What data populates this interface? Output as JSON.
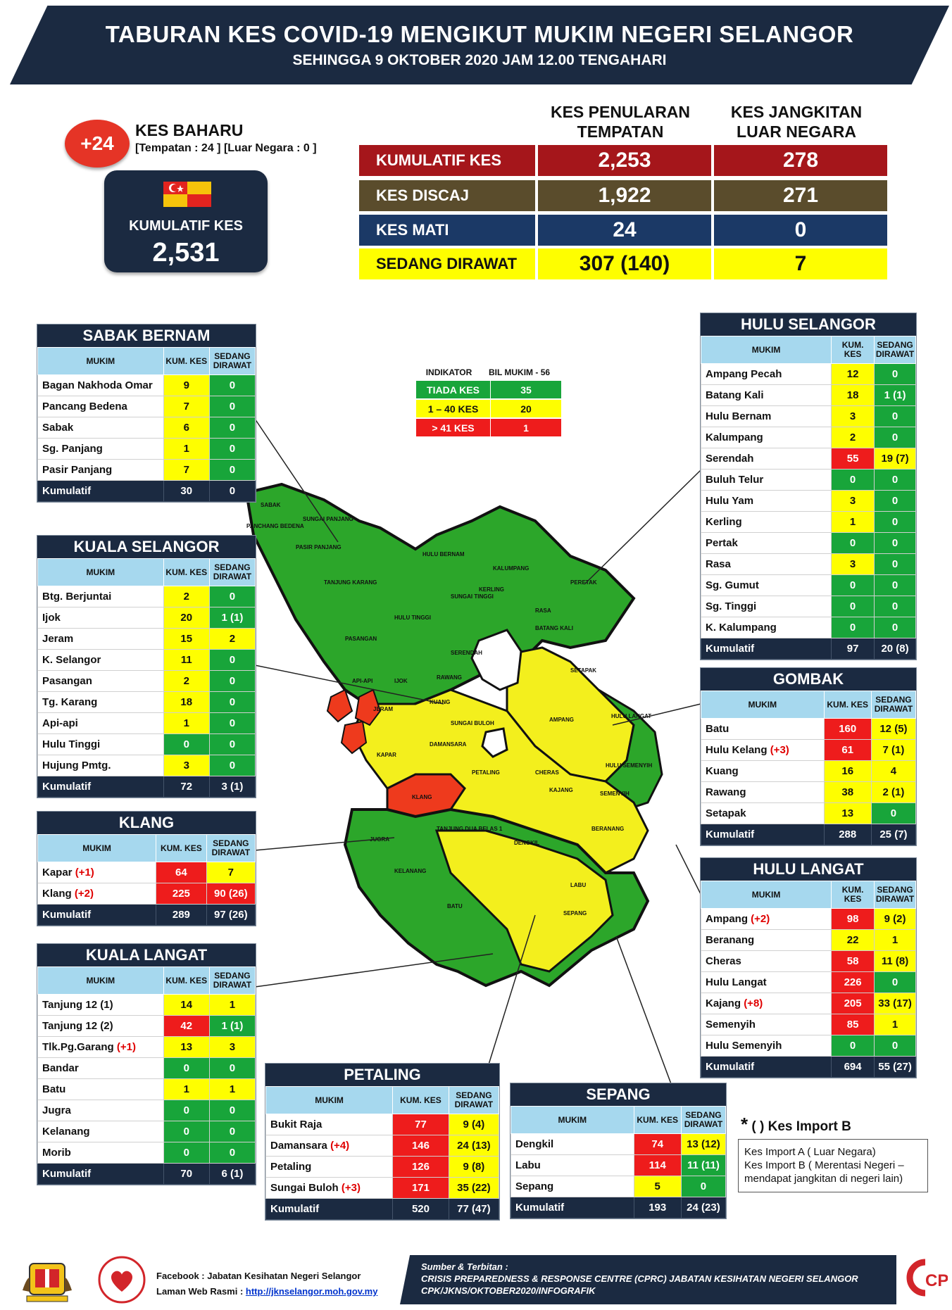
{
  "header": {
    "title": "TABURAN KES COVID-19 MENGIKUT MUKIM NEGERI SELANGOR",
    "subtitle": "SEHINGGA 9 OKTOBER 2020 JAM 12.00 TENGAHARI"
  },
  "new_cases": {
    "badge": "+24",
    "title": "KES BAHARU",
    "detail": "[Tempatan : 24 ] [Luar Negara : 0 ]"
  },
  "cumulative": {
    "label": "KUMULATIF KES",
    "value": "2,531"
  },
  "summary": {
    "col1": "KES PENULARAN TEMPATAN",
    "col2": "KES JANGKITAN LUAR NEGARA",
    "rows": [
      {
        "label": "KUMULATIF KES",
        "v1": "2,253",
        "v2": "278",
        "color": "#a5161b"
      },
      {
        "label": "KES DISCAJ",
        "v1": "1,922",
        "v2": "271",
        "color": "#5a4c2c"
      },
      {
        "label": "KES MATI",
        "v1": "24",
        "v2": "0",
        "color": "#1b3966"
      },
      {
        "label": "SEDANG DIRAWAT",
        "v1": "307 (140)",
        "v2": "7",
        "color": "#fefe00"
      }
    ]
  },
  "indicator": {
    "h1": "INDIKATOR",
    "h2": "BIL MUKIM - 56",
    "rows": [
      {
        "label": "TIADA KES",
        "value": "35",
        "color": "#18a53a"
      },
      {
        "label": "1 – 40 KES",
        "value": "20",
        "color": "#fefe00"
      },
      {
        "label": "> 41 KES",
        "value": "1",
        "color": "#ee1c1c"
      }
    ]
  },
  "table_headers": {
    "mukim": "MUKIM",
    "kum": "KUM. KES",
    "sedang": "SEDANG DIRAWAT"
  },
  "districts": {
    "sabak_bernam": {
      "title": "SABAK BERNAM",
      "rows": [
        {
          "mukim": "Bagan Nakhoda Omar",
          "inc": "",
          "kum": "9",
          "kc": "y",
          "sed": "0",
          "sc": "g"
        },
        {
          "mukim": "Pancang Bedena",
          "inc": "",
          "kum": "7",
          "kc": "y",
          "sed": "0",
          "sc": "g"
        },
        {
          "mukim": "Sabak",
          "inc": "",
          "kum": "6",
          "kc": "y",
          "sed": "0",
          "sc": "g"
        },
        {
          "mukim": "Sg. Panjang",
          "inc": "",
          "kum": "1",
          "kc": "y",
          "sed": "0",
          "sc": "g"
        },
        {
          "mukim": "Pasir Panjang",
          "inc": "",
          "kum": "7",
          "kc": "y",
          "sed": "0",
          "sc": "g"
        }
      ],
      "total": {
        "label": "Kumulatif",
        "kum": "30",
        "sed": "0"
      }
    },
    "kuala_selangor": {
      "title": "KUALA SELANGOR",
      "rows": [
        {
          "mukim": "Btg. Berjuntai",
          "inc": "",
          "kum": "2",
          "kc": "y",
          "sed": "0",
          "sc": "g"
        },
        {
          "mukim": "Ijok",
          "inc": "",
          "kum": "20",
          "kc": "y",
          "sed": "1 (1)",
          "sc": "g"
        },
        {
          "mukim": "Jeram",
          "inc": "",
          "kum": "15",
          "kc": "y",
          "sed": "2",
          "sc": "y"
        },
        {
          "mukim": "K. Selangor",
          "inc": "",
          "kum": "11",
          "kc": "y",
          "sed": "0",
          "sc": "g"
        },
        {
          "mukim": "Pasangan",
          "inc": "",
          "kum": "2",
          "kc": "y",
          "sed": "0",
          "sc": "g"
        },
        {
          "mukim": "Tg. Karang",
          "inc": "",
          "kum": "18",
          "kc": "y",
          "sed": "0",
          "sc": "g"
        },
        {
          "mukim": "Api-api",
          "inc": "",
          "kum": "1",
          "kc": "y",
          "sed": "0",
          "sc": "g"
        },
        {
          "mukim": "Hulu Tinggi",
          "inc": "",
          "kum": "0",
          "kc": "g",
          "sed": "0",
          "sc": "g"
        },
        {
          "mukim": "Hujung Pmtg.",
          "inc": "",
          "kum": "3",
          "kc": "y",
          "sed": "0",
          "sc": "g"
        }
      ],
      "total": {
        "label": "Kumulatif",
        "kum": "72",
        "sed": "3 (1)"
      }
    },
    "klang": {
      "title": "KLANG",
      "rows": [
        {
          "mukim": "Kapar",
          "inc": "(+1)",
          "kum": "64",
          "kc": "r",
          "sed": "7",
          "sc": "y"
        },
        {
          "mukim": "Klang",
          "inc": "(+2)",
          "kum": "225",
          "kc": "r",
          "sed": "90 (26)",
          "sc": "r"
        }
      ],
      "total": {
        "label": "Kumulatif",
        "kum": "289",
        "sed": "97 (26)"
      }
    },
    "kuala_langat": {
      "title": "KUALA LANGAT",
      "rows": [
        {
          "mukim": "Tanjung 12 (1)",
          "inc": "",
          "kum": "14",
          "kc": "y",
          "sed": "1",
          "sc": "y"
        },
        {
          "mukim": "Tanjung 12 (2)",
          "inc": "",
          "kum": "42",
          "kc": "r",
          "sed": "1 (1)",
          "sc": "g"
        },
        {
          "mukim": "Tlk.Pg.Garang",
          "inc": "(+1)",
          "kum": "13",
          "kc": "y",
          "sed": "3",
          "sc": "y"
        },
        {
          "mukim": "Bandar",
          "inc": "",
          "kum": "0",
          "kc": "g",
          "sed": "0",
          "sc": "g"
        },
        {
          "mukim": "Batu",
          "inc": "",
          "kum": "1",
          "kc": "y",
          "sed": "1",
          "sc": "y"
        },
        {
          "mukim": "Jugra",
          "inc": "",
          "kum": "0",
          "kc": "g",
          "sed": "0",
          "sc": "g"
        },
        {
          "mukim": "Kelanang",
          "inc": "",
          "kum": "0",
          "kc": "g",
          "sed": "0",
          "sc": "g"
        },
        {
          "mukim": "Morib",
          "inc": "",
          "kum": "0",
          "kc": "g",
          "sed": "0",
          "sc": "g"
        }
      ],
      "total": {
        "label": "Kumulatif",
        "kum": "70",
        "sed": "6 (1)"
      }
    },
    "petaling": {
      "title": "PETALING",
      "rows": [
        {
          "mukim": "Bukit Raja",
          "inc": "",
          "kum": "77",
          "kc": "r",
          "sed": "9 (4)",
          "sc": "y"
        },
        {
          "mukim": "Damansara",
          "inc": "(+4)",
          "kum": "146",
          "kc": "r",
          "sed": "24 (13)",
          "sc": "y"
        },
        {
          "mukim": "Petaling",
          "inc": "",
          "kum": "126",
          "kc": "r",
          "sed": "9 (8)",
          "sc": "y"
        },
        {
          "mukim": "Sungai Buloh",
          "inc": "(+3)",
          "kum": "171",
          "kc": "r",
          "sed": "35 (22)",
          "sc": "y"
        }
      ],
      "total": {
        "label": "Kumulatif",
        "kum": "520",
        "sed": "77 (47)"
      }
    },
    "sepang": {
      "title": "SEPANG",
      "rows": [
        {
          "mukim": "Dengkil",
          "inc": "",
          "kum": "74",
          "kc": "r",
          "sed": "13 (12)",
          "sc": "y"
        },
        {
          "mukim": "Labu",
          "inc": "",
          "kum": "114",
          "kc": "r",
          "sed": "11 (11)",
          "sc": "g"
        },
        {
          "mukim": "Sepang",
          "inc": "",
          "kum": "5",
          "kc": "y",
          "sed": "0",
          "sc": "g"
        }
      ],
      "total": {
        "label": "Kumulatif",
        "kum": "193",
        "sed": "24 (23)"
      }
    },
    "hulu_selangor": {
      "title": "HULU SELANGOR",
      "rows": [
        {
          "mukim": "Ampang Pecah",
          "inc": "",
          "kum": "12",
          "kc": "y",
          "sed": "0",
          "sc": "g"
        },
        {
          "mukim": "Batang Kali",
          "inc": "",
          "kum": "18",
          "kc": "y",
          "sed": "1 (1)",
          "sc": "g"
        },
        {
          "mukim": "Hulu Bernam",
          "inc": "",
          "kum": "3",
          "kc": "y",
          "sed": "0",
          "sc": "g"
        },
        {
          "mukim": "Kalumpang",
          "inc": "",
          "kum": "2",
          "kc": "y",
          "sed": "0",
          "sc": "g"
        },
        {
          "mukim": "Serendah",
          "inc": "",
          "kum": "55",
          "kc": "r",
          "sed": "19 (7)",
          "sc": "y"
        },
        {
          "mukim": "Buluh Telur",
          "inc": "",
          "kum": "0",
          "kc": "g",
          "sed": "0",
          "sc": "g"
        },
        {
          "mukim": "Hulu Yam",
          "inc": "",
          "kum": "3",
          "kc": "y",
          "sed": "0",
          "sc": "g"
        },
        {
          "mukim": "Kerling",
          "inc": "",
          "kum": "1",
          "kc": "y",
          "sed": "0",
          "sc": "g"
        },
        {
          "mukim": "Pertak",
          "inc": "",
          "kum": "0",
          "kc": "g",
          "sed": "0",
          "sc": "g"
        },
        {
          "mukim": "Rasa",
          "inc": "",
          "kum": "3",
          "kc": "y",
          "sed": "0",
          "sc": "g"
        },
        {
          "mukim": "Sg. Gumut",
          "inc": "",
          "kum": "0",
          "kc": "g",
          "sed": "0",
          "sc": "g"
        },
        {
          "mukim": "Sg. Tinggi",
          "inc": "",
          "kum": "0",
          "kc": "g",
          "sed": "0",
          "sc": "g"
        },
        {
          "mukim": "K. Kalumpang",
          "inc": "",
          "kum": "0",
          "kc": "g",
          "sed": "0",
          "sc": "g"
        }
      ],
      "total": {
        "label": "Kumulatif",
        "kum": "97",
        "sed": "20 (8)"
      }
    },
    "gombak": {
      "title": "GOMBAK",
      "rows": [
        {
          "mukim": "Batu",
          "inc": "",
          "kum": "160",
          "kc": "r",
          "sed": "12 (5)",
          "sc": "y"
        },
        {
          "mukim": "Hulu Kelang",
          "inc": "(+3)",
          "kum": "61",
          "kc": "r",
          "sed": "7 (1)",
          "sc": "y"
        },
        {
          "mukim": "Kuang",
          "inc": "",
          "kum": "16",
          "kc": "y",
          "sed": "4",
          "sc": "y"
        },
        {
          "mukim": "Rawang",
          "inc": "",
          "kum": "38",
          "kc": "y",
          "sed": "2 (1)",
          "sc": "y"
        },
        {
          "mukim": "Setapak",
          "inc": "",
          "kum": "13",
          "kc": "y",
          "sed": "0",
          "sc": "g"
        }
      ],
      "total": {
        "label": "Kumulatif",
        "kum": "288",
        "sed": "25 (7)"
      }
    },
    "hulu_langat": {
      "title": "HULU LANGAT",
      "rows": [
        {
          "mukim": "Ampang",
          "inc": "(+2)",
          "kum": "98",
          "kc": "r",
          "sed": "9 (2)",
          "sc": "y"
        },
        {
          "mukim": "Beranang",
          "inc": "",
          "kum": "22",
          "kc": "y",
          "sed": "1",
          "sc": "y"
        },
        {
          "mukim": "Cheras",
          "inc": "",
          "kum": "58",
          "kc": "r",
          "sed": "11 (8)",
          "sc": "y"
        },
        {
          "mukim": "Hulu Langat",
          "inc": "",
          "kum": "226",
          "kc": "r",
          "sed": "0",
          "sc": "g"
        },
        {
          "mukim": "Kajang",
          "inc": "(+8)",
          "kum": "205",
          "kc": "r",
          "sed": "33 (17)",
          "sc": "y"
        },
        {
          "mukim": "Semenyih",
          "inc": "",
          "kum": "85",
          "kc": "r",
          "sed": "1",
          "sc": "y"
        },
        {
          "mukim": "Hulu Semenyih",
          "inc": "",
          "kum": "0",
          "kc": "g",
          "sed": "0",
          "sc": "g"
        }
      ],
      "total": {
        "label": "Kumulatif",
        "kum": "694",
        "sed": "55 (27)"
      }
    }
  },
  "map_labels": {
    "sabak": "SABAK",
    "sungai_panjang": "SUNGAI PANJANG",
    "pancang": "PANCHANG BEDENA",
    "pasir": "PASIR PANJANG",
    "hulu_bernam": "HULU BERNAM",
    "kalumpang": "KALUMPANG",
    "peretak": "PERETAK",
    "kerling": "KERLING",
    "tanjung_karang": "TANJUNG KARANG",
    "sungai_tinggi": "SUNGAI TINGGI",
    "rasa": "RASA",
    "hulu_tinggi": "HULU TINGGI",
    "batang_kali": "BATANG KALI",
    "pasangan": "PASANGAN",
    "serendah": "SERENDAH",
    "rawang": "RAWANG",
    "api_api": "API-API",
    "ijok": "IJOK",
    "kuang": "KUANG",
    "batu": "BATU",
    "setapak": "SETAPAK",
    "jeram": "JERAM",
    "sungai_buloh": "SUNGAI BULOH",
    "hulu_langat": "HULU LANGAT",
    "kapar": "KAPAR",
    "damansara": "DAMANSARA",
    "ampang": "AMPANG",
    "klang": "KLANG",
    "petaling": "PETALING",
    "cheras": "CHERAS",
    "hulu_semenyih": "HULU SEMENYIH",
    "kajang": "KAJANG",
    "semenyih": "SEMENYIH",
    "tanjung12": "TANJUNG DUA BELAS 1",
    "jugra": "JUGRA",
    "dengkil": "DENGKIL",
    "beranang": "BERANANG",
    "labu": "LABU",
    "sepang": "SEPANG",
    "batu_kl": "BATU",
    "kelanang": "KELANANG"
  },
  "import_note": {
    "star": "*",
    "text": "(   ) Kes Import B",
    "line1": "Kes Import A ( Luar Negara)",
    "line2": "Kes Import B ( Merentasi Negeri –",
    "line3": "mendapat jangkitan di negeri lain)"
  },
  "footer": {
    "facebook": "Facebook : Jabatan Kesihatan Negeri Selangor",
    "web_label": "Laman Web Rasmi : ",
    "web_url": "http://jknselangor.moh.gov.my",
    "source_title": "Sumber & Terbitan :",
    "source_org": "CRISIS PREPAREDNESS & RESPONSE CENTRE (CPRC) JABATAN KESIHATAN NEGERI SELANGOR",
    "source_ref": "CPK/JKNS/OKTOBER2020/INFOGRAFIK",
    "cprc_logo": "CPRC"
  },
  "colors": {
    "navy": "#1b2a41",
    "green": "#18a53a",
    "yellow": "#fefe00",
    "red": "#ee1c1c"
  }
}
